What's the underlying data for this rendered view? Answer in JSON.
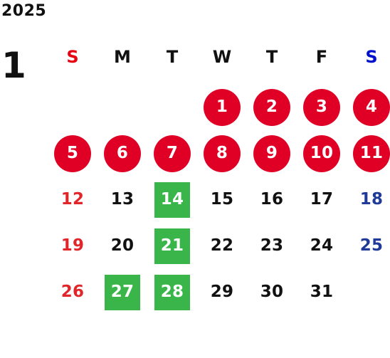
{
  "calendar": {
    "year": "2025",
    "month": "1",
    "colors": {
      "sunday": "#e0262a",
      "saturday": "#1f3b97",
      "weekday": "#111111",
      "holiday_fill": "#e00026",
      "event_fill": "#39b54a"
    },
    "weekdays": [
      {
        "label": "S",
        "color": "#e60012"
      },
      {
        "label": "M",
        "color": "#111111"
      },
      {
        "label": "T",
        "color": "#111111"
      },
      {
        "label": "W",
        "color": "#111111"
      },
      {
        "label": "T",
        "color": "#111111"
      },
      {
        "label": "F",
        "color": "#111111"
      },
      {
        "label": "S",
        "color": "#0011cc"
      }
    ],
    "start_weekday": 3,
    "days": [
      {
        "n": "1",
        "style": "holiday"
      },
      {
        "n": "2",
        "style": "holiday"
      },
      {
        "n": "3",
        "style": "holiday"
      },
      {
        "n": "4",
        "style": "holiday"
      },
      {
        "n": "5",
        "style": "holiday"
      },
      {
        "n": "6",
        "style": "holiday"
      },
      {
        "n": "7",
        "style": "holiday"
      },
      {
        "n": "8",
        "style": "holiday"
      },
      {
        "n": "9",
        "style": "holiday"
      },
      {
        "n": "10",
        "style": "holiday"
      },
      {
        "n": "11",
        "style": "holiday"
      },
      {
        "n": "12",
        "style": "sunday"
      },
      {
        "n": "13",
        "style": "normal"
      },
      {
        "n": "14",
        "style": "event"
      },
      {
        "n": "15",
        "style": "normal"
      },
      {
        "n": "16",
        "style": "normal"
      },
      {
        "n": "17",
        "style": "normal"
      },
      {
        "n": "18",
        "style": "saturday"
      },
      {
        "n": "19",
        "style": "sunday"
      },
      {
        "n": "20",
        "style": "normal"
      },
      {
        "n": "21",
        "style": "event"
      },
      {
        "n": "22",
        "style": "normal"
      },
      {
        "n": "23",
        "style": "normal"
      },
      {
        "n": "24",
        "style": "normal"
      },
      {
        "n": "25",
        "style": "saturday"
      },
      {
        "n": "26",
        "style": "sunday"
      },
      {
        "n": "27",
        "style": "event"
      },
      {
        "n": "28",
        "style": "event"
      },
      {
        "n": "29",
        "style": "normal"
      },
      {
        "n": "30",
        "style": "normal"
      },
      {
        "n": "31",
        "style": "normal"
      }
    ]
  }
}
